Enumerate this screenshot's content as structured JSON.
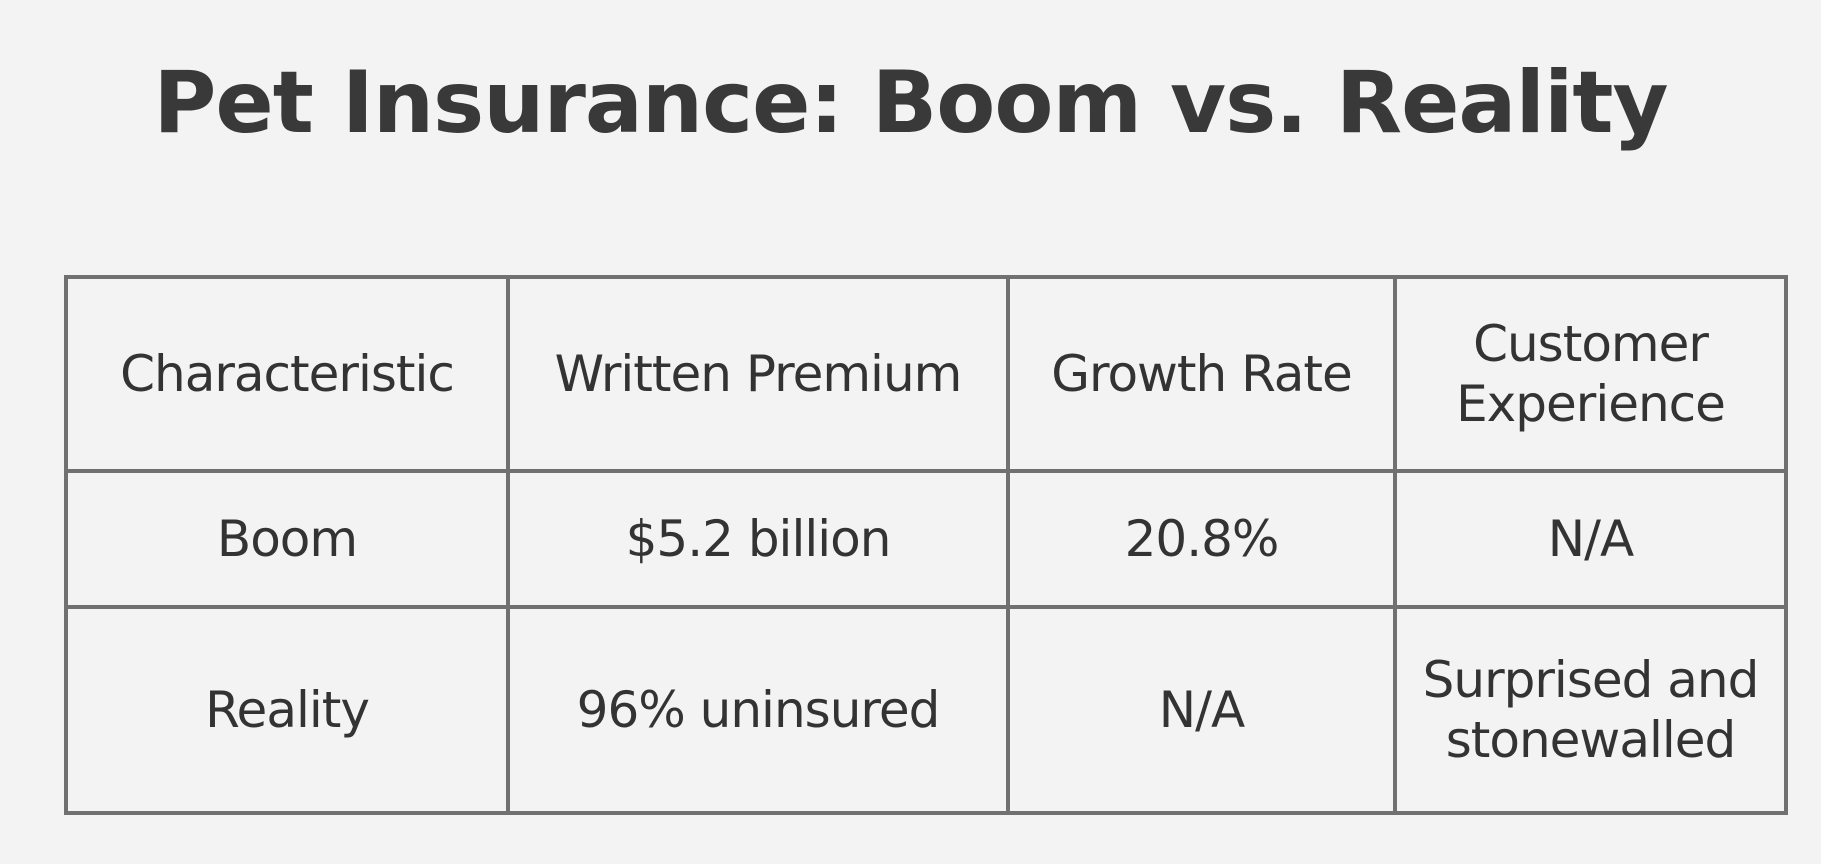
{
  "title": "Pet Insurance: Boom vs. Reality",
  "colors": {
    "written_premium": "#e27a1e",
    "growth_rate": "#e1252b",
    "customer_experience": "#e44b94",
    "text": "#333333",
    "border": "#707070",
    "background": "#f3f3f3"
  },
  "table": {
    "headers": [
      "Characteristic",
      "Written Premium",
      "Growth Rate",
      "Customer Experience"
    ],
    "rows": [
      [
        "Boom",
        "$5.2 billion",
        "20.8%",
        "N/A"
      ],
      [
        "Reality",
        "96% uninsured",
        "N/A",
        "Surprised and stonewalled"
      ]
    ]
  }
}
